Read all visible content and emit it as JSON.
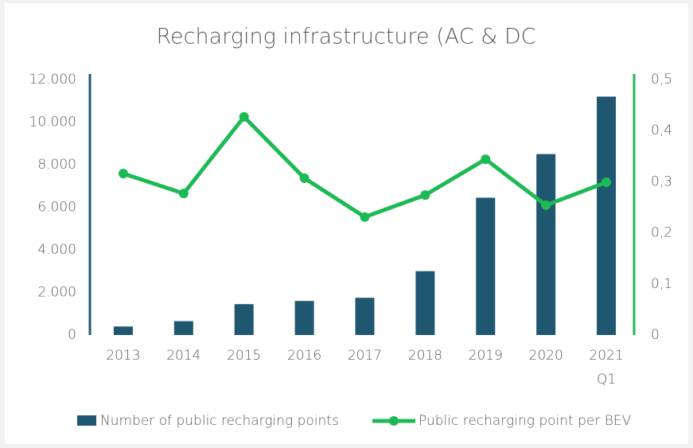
{
  "chart_data": {
    "type": "bar_line",
    "title": "Recharging infrastructure (AC & DC",
    "categories": [
      "2013",
      "2014",
      "2015",
      "2016",
      "2017",
      "2018",
      "2019",
      "2020",
      "2021 Q1"
    ],
    "series": [
      {
        "name": "Number of public recharging points",
        "type": "bar",
        "color": "#1f5770",
        "values": [
          400,
          650,
          1450,
          1600,
          1750,
          3000,
          6450,
          8500,
          11200
        ]
      },
      {
        "name": "Public recharging point per BEV",
        "type": "line",
        "axis": "y2",
        "color": "#1db954",
        "values": [
          0.316,
          0.277,
          0.427,
          0.307,
          0.231,
          0.274,
          0.344,
          0.254,
          0.299
        ]
      }
    ],
    "ylim": [
      0,
      12000
    ],
    "yticks": [
      0,
      {
        "value": 2000,
        "label": "2.000"
      },
      {
        "value": 4000,
        "label": "4.000"
      },
      {
        "value": 6000,
        "label": "6.000"
      },
      {
        "value": 8000,
        "label": "8.000"
      },
      {
        "value": 10000,
        "label": "10.000"
      },
      {
        "value": 12000,
        "label": "12.000"
      }
    ],
    "y2lim": [
      0,
      0.5
    ],
    "y2ticks": [
      0,
      {
        "value": 0.1,
        "label": "0,1"
      },
      {
        "value": 0.2,
        "label": "0,2"
      },
      {
        "value": 0.3,
        "label": "0,3"
      },
      {
        "value": 0.4,
        "label": "0,4"
      },
      {
        "value": 0.5,
        "label": "0,5"
      }
    ],
    "legend": "bottom"
  }
}
